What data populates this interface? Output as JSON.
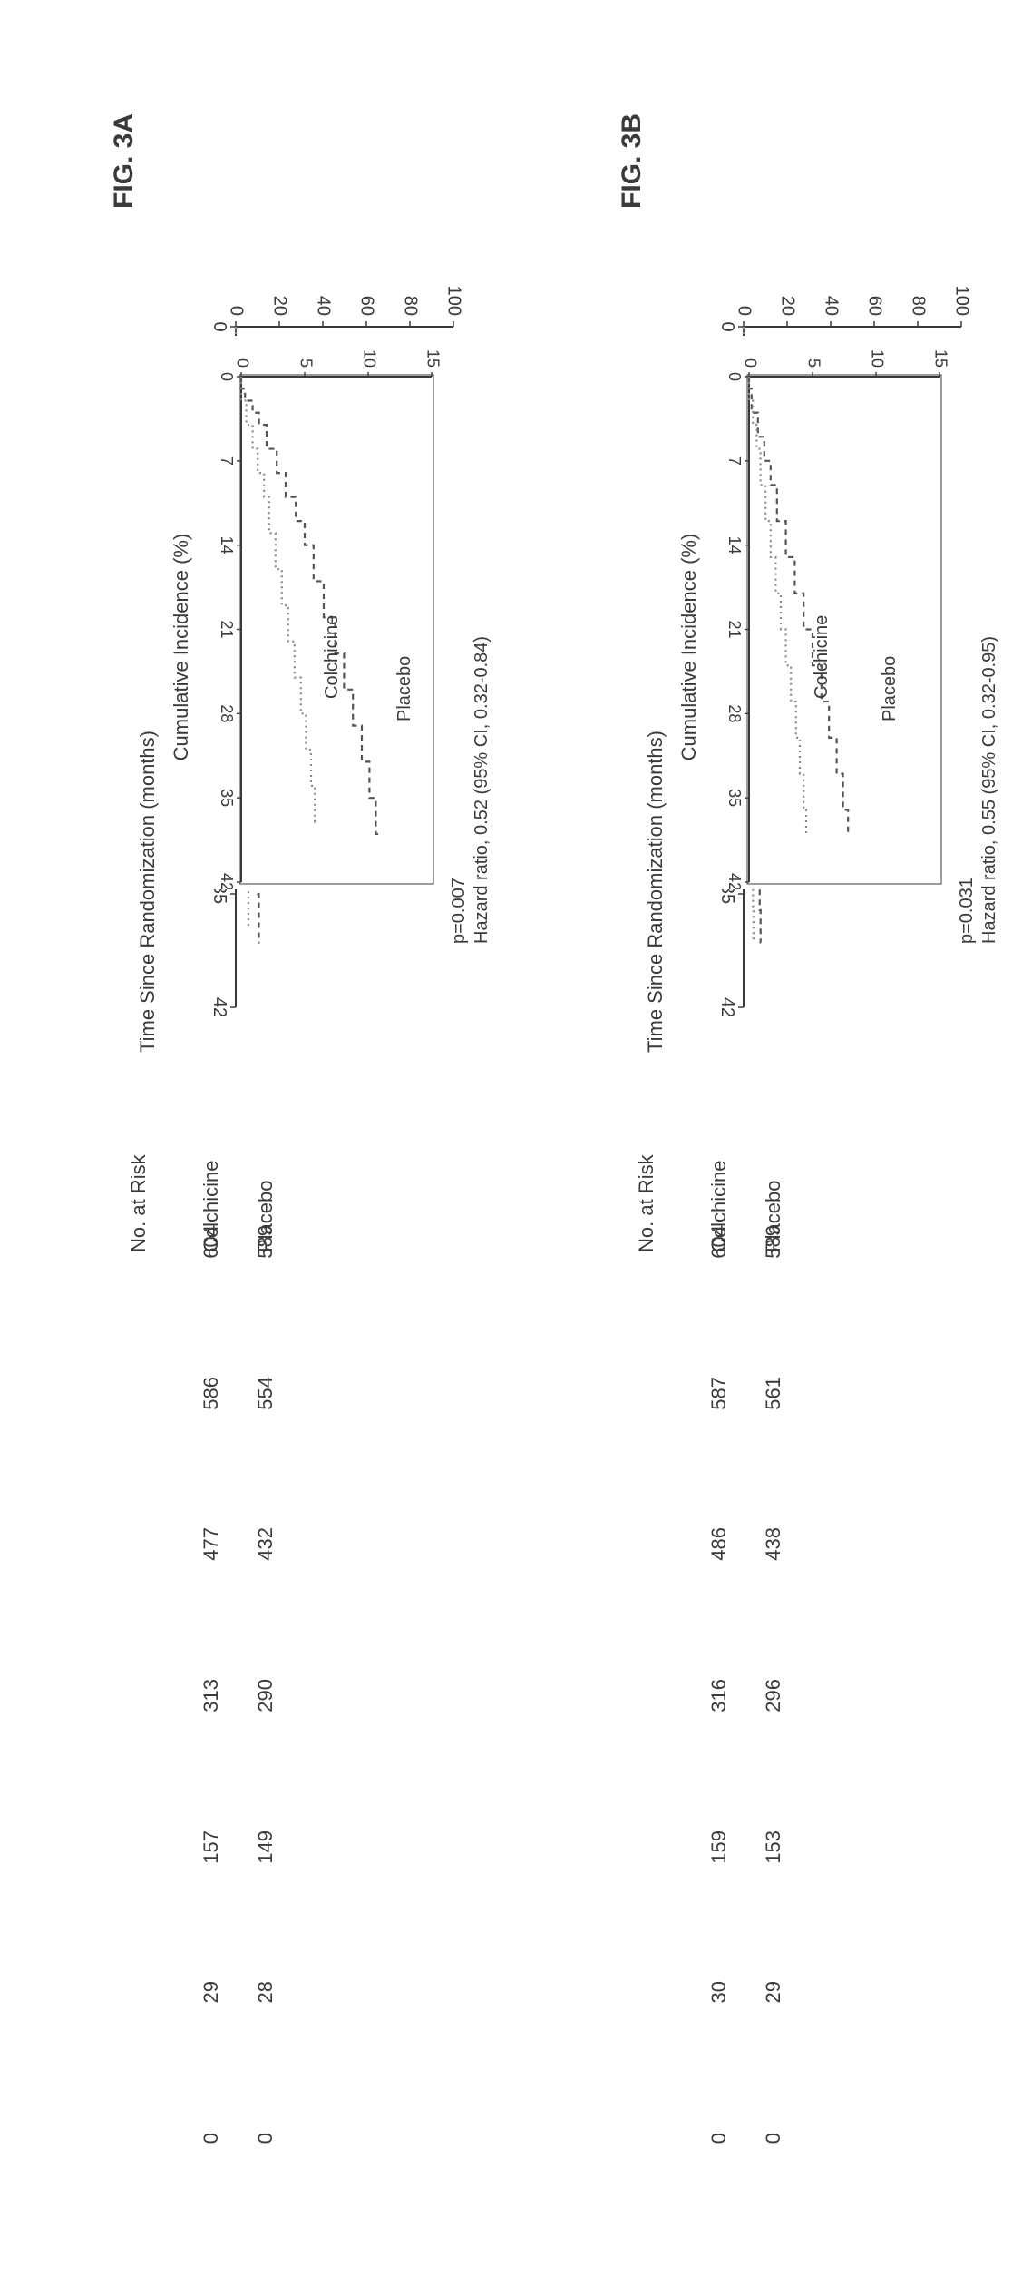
{
  "figure": {
    "background_color": "#ffffff",
    "text_color": "#3a3a3a",
    "font_family": "Arial",
    "line_color_primary": "#555555",
    "line_color_secondary": "#888888"
  },
  "panelA": {
    "label": "FIG. 3A",
    "hazard_text": "Hazard ratio, 0.52 (95% CI, 0.32-0.84)",
    "p_text": "p=0.007",
    "ylabel": "Cumulative Incidence (%)",
    "xlabel": "Time Since Randomization (months)",
    "ylim": [
      0,
      100
    ],
    "yticks": [
      0,
      20,
      40,
      60,
      80,
      100
    ],
    "xlim": [
      0,
      42
    ],
    "xticks": [
      0,
      7,
      14,
      21,
      28,
      35,
      42
    ],
    "inset_ylim": [
      0,
      15
    ],
    "inset_yticks": [
      0,
      5,
      10,
      15
    ],
    "inset_xticks": [
      0,
      7,
      14,
      21,
      28,
      35,
      42
    ],
    "series_placebo_label": "Placebo",
    "series_colchicine_label": "Colchicine",
    "placebo_curve": [
      {
        "x": 0,
        "y": 0
      },
      {
        "x": 1,
        "y": 0.3
      },
      {
        "x": 2,
        "y": 0.9
      },
      {
        "x": 3,
        "y": 1.4
      },
      {
        "x": 4,
        "y": 2.0
      },
      {
        "x": 6,
        "y": 2.8
      },
      {
        "x": 8,
        "y": 3.5
      },
      {
        "x": 10,
        "y": 4.3
      },
      {
        "x": 12,
        "y": 5.0
      },
      {
        "x": 14,
        "y": 5.7
      },
      {
        "x": 17,
        "y": 6.5
      },
      {
        "x": 20,
        "y": 7.4
      },
      {
        "x": 23,
        "y": 8.1
      },
      {
        "x": 26,
        "y": 8.8
      },
      {
        "x": 29,
        "y": 9.5
      },
      {
        "x": 32,
        "y": 10.1
      },
      {
        "x": 35,
        "y": 10.6
      },
      {
        "x": 38,
        "y": 11.0
      }
    ],
    "colchicine_curve": [
      {
        "x": 0,
        "y": 0
      },
      {
        "x": 2,
        "y": 0.4
      },
      {
        "x": 4,
        "y": 0.9
      },
      {
        "x": 6,
        "y": 1.3
      },
      {
        "x": 8,
        "y": 1.8
      },
      {
        "x": 10,
        "y": 2.2
      },
      {
        "x": 13,
        "y": 2.7
      },
      {
        "x": 16,
        "y": 3.2
      },
      {
        "x": 19,
        "y": 3.7
      },
      {
        "x": 22,
        "y": 4.2
      },
      {
        "x": 25,
        "y": 4.7
      },
      {
        "x": 28,
        "y": 5.1
      },
      {
        "x": 31,
        "y": 5.5
      },
      {
        "x": 34,
        "y": 5.8
      },
      {
        "x": 37,
        "y": 6.0
      }
    ],
    "risk_title": "No. at Risk",
    "risk_rows": [
      {
        "label": "Colchicine",
        "counts": [
          604,
          586,
          477,
          313,
          157,
          29,
          0
        ]
      },
      {
        "label": "Placebo",
        "counts": [
          589,
          554,
          432,
          290,
          149,
          28,
          0
        ]
      }
    ]
  },
  "panelB": {
    "label": "FIG. 3B",
    "hazard_text": "Hazard ratio, 0.55 (95% CI, 0.32-0.95)",
    "p_text": "p=0.031",
    "ylabel": "Cumulative Incidence (%)",
    "xlabel": "Time Since Randomization (months)",
    "ylim": [
      0,
      100
    ],
    "yticks": [
      0,
      20,
      40,
      60,
      80,
      100
    ],
    "xlim": [
      0,
      42
    ],
    "xticks": [
      0,
      7,
      14,
      21,
      28,
      35,
      42
    ],
    "inset_ylim": [
      0,
      15
    ],
    "inset_yticks": [
      0,
      5,
      10,
      15
    ],
    "inset_xticks": [
      0,
      7,
      14,
      21,
      28,
      35,
      42
    ],
    "series_placebo_label": "Placebo",
    "series_colchicine_label": "Colchicine",
    "placebo_curve": [
      {
        "x": 0,
        "y": 0
      },
      {
        "x": 1,
        "y": 0.2
      },
      {
        "x": 3,
        "y": 0.7
      },
      {
        "x": 5,
        "y": 1.2
      },
      {
        "x": 7,
        "y": 1.7
      },
      {
        "x": 9,
        "y": 2.2
      },
      {
        "x": 12,
        "y": 2.9
      },
      {
        "x": 15,
        "y": 3.6
      },
      {
        "x": 18,
        "y": 4.3
      },
      {
        "x": 21,
        "y": 5.0
      },
      {
        "x": 24,
        "y": 5.7
      },
      {
        "x": 27,
        "y": 6.3
      },
      {
        "x": 30,
        "y": 6.9
      },
      {
        "x": 33,
        "y": 7.4
      },
      {
        "x": 36,
        "y": 7.8
      },
      {
        "x": 38,
        "y": 8.0
      }
    ],
    "colchicine_curve": [
      {
        "x": 0,
        "y": 0
      },
      {
        "x": 2,
        "y": 0.3
      },
      {
        "x": 4,
        "y": 0.6
      },
      {
        "x": 6,
        "y": 0.9
      },
      {
        "x": 9,
        "y": 1.3
      },
      {
        "x": 12,
        "y": 1.7
      },
      {
        "x": 15,
        "y": 2.1
      },
      {
        "x": 18,
        "y": 2.5
      },
      {
        "x": 21,
        "y": 2.9
      },
      {
        "x": 24,
        "y": 3.3
      },
      {
        "x": 27,
        "y": 3.7
      },
      {
        "x": 30,
        "y": 4.0
      },
      {
        "x": 33,
        "y": 4.3
      },
      {
        "x": 36,
        "y": 4.5
      },
      {
        "x": 38,
        "y": 4.6
      }
    ],
    "risk_title": "No. at Risk",
    "risk_rows": [
      {
        "label": "Colchicine",
        "counts": [
          604,
          587,
          486,
          316,
          159,
          30,
          0
        ]
      },
      {
        "label": "Placebo",
        "counts": [
          589,
          561,
          438,
          296,
          153,
          29,
          0
        ]
      }
    ]
  },
  "chart_style": {
    "axis_stroke": "#3a3a3a",
    "axis_width": 2,
    "placebo_dash": "6,5",
    "colchicine_dash": "2,4",
    "line_width": 2.2,
    "tick_fontsize": 20,
    "label_fontsize": 22,
    "stat_fontsize": 20
  }
}
